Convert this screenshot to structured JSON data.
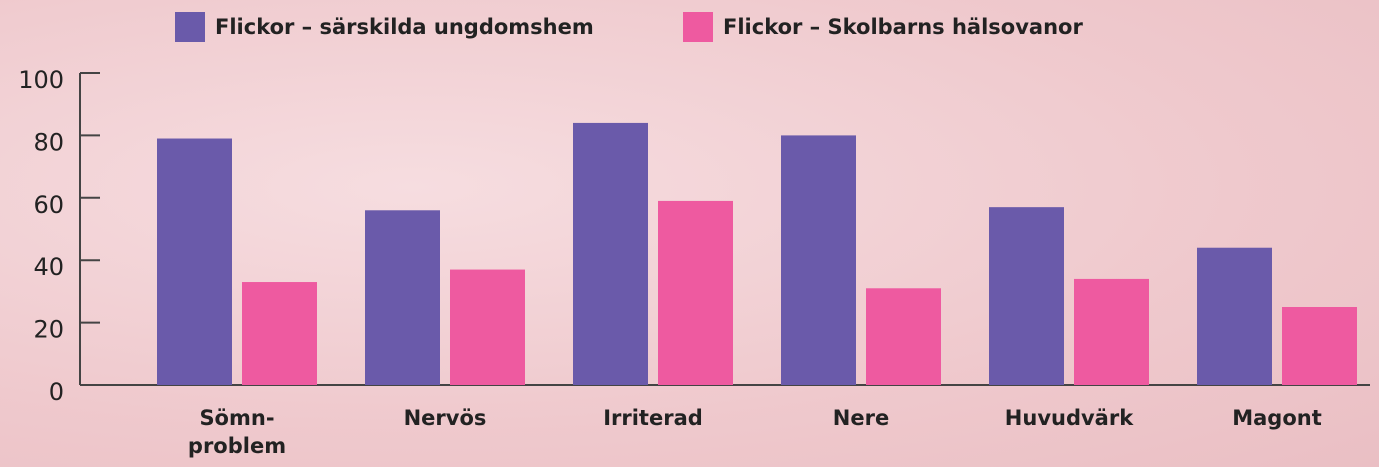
{
  "chart_data": {
    "type": "bar",
    "categories": [
      "Sömn-\nproblem",
      "Nervös",
      "Irriterad",
      "Nere",
      "Huvudvärk",
      "Magont"
    ],
    "series": [
      {
        "name": "Flickor – särskilda ungdomshem",
        "color": "#6a5aaa",
        "values": [
          79,
          56,
          84,
          80,
          57,
          44
        ]
      },
      {
        "name": "Flickor – Skolbarns hälsovanor",
        "color": "#ee5aa0",
        "values": [
          33,
          37,
          59,
          31,
          34,
          25
        ]
      }
    ],
    "ylim": [
      0,
      100
    ],
    "yticks": [
      0,
      20,
      40,
      60,
      80,
      100
    ],
    "legend": "top"
  }
}
